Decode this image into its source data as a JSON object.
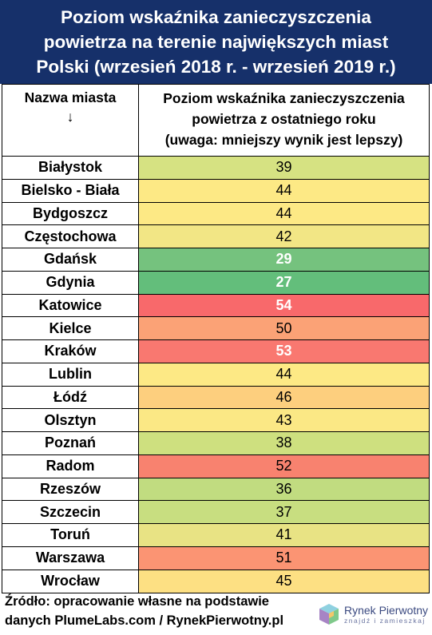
{
  "title_lines": [
    "Poziom wskaźnika zanieczyszczenia",
    "powietrza na terenie największych miast",
    "Polski (wrzesień 2018 r. - wrzesień 2019 r.)"
  ],
  "header": {
    "city_lines": [
      "Nazwa miasta",
      "↓"
    ],
    "value_lines": [
      "Poziom wskaźnika zanieczyszczenia",
      "powietrza z ostatniego roku",
      "(uwaga: mniejszy wynik jest lepszy)"
    ]
  },
  "chart_data": {
    "type": "table",
    "columns": [
      "Nazwa miasta",
      "Poziom wskaźnika zanieczyszczenia powietrza z ostatniego roku"
    ],
    "rows": [
      {
        "city": "Białystok",
        "value": 39,
        "color": "#d6e282",
        "bold": false
      },
      {
        "city": "Bielsko - Biała",
        "value": 44,
        "color": "#fde985",
        "bold": false
      },
      {
        "city": "Bydgoszcz",
        "value": 44,
        "color": "#fde985",
        "bold": false
      },
      {
        "city": "Częstochowa",
        "value": 42,
        "color": "#f2e685",
        "bold": false
      },
      {
        "city": "Gdańsk",
        "value": 29,
        "color": "#75c27e",
        "bold": true
      },
      {
        "city": "Gdynia",
        "value": 27,
        "color": "#63be7b",
        "bold": true
      },
      {
        "city": "Katowice",
        "value": 54,
        "color": "#f8696b",
        "bold": true
      },
      {
        "city": "Kielce",
        "value": 50,
        "color": "#fba276",
        "bold": false
      },
      {
        "city": "Kraków",
        "value": 53,
        "color": "#f97870",
        "bold": true
      },
      {
        "city": "Lublin",
        "value": 44,
        "color": "#fde985",
        "bold": false
      },
      {
        "city": "Łódź",
        "value": 46,
        "color": "#fdcf7e",
        "bold": false
      },
      {
        "city": "Olsztyn",
        "value": 43,
        "color": "#fbe885",
        "bold": false
      },
      {
        "city": "Poznań",
        "value": 38,
        "color": "#cee07f",
        "bold": false
      },
      {
        "city": "Radom",
        "value": 52,
        "color": "#f8826f",
        "bold": false
      },
      {
        "city": "Rzeszów",
        "value": 36,
        "color": "#c1dc80",
        "bold": false
      },
      {
        "city": "Szczecin",
        "value": 37,
        "color": "#c8de80",
        "bold": false
      },
      {
        "city": "Toruń",
        "value": 41,
        "color": "#e8e384",
        "bold": false
      },
      {
        "city": "Warszawa",
        "value": 51,
        "color": "#fb9473",
        "bold": false
      },
      {
        "city": "Wrocław",
        "value": 45,
        "color": "#fde083",
        "bold": false
      }
    ]
  },
  "footer_lines": [
    "Źródło: opracowanie własne na podstawie",
    "danych PlumeLabs.com / RynekPierwotny.pl"
  ],
  "logo": {
    "name": "Rynek Pierwotny",
    "tagline": "znajdź i zamieszkaj"
  }
}
